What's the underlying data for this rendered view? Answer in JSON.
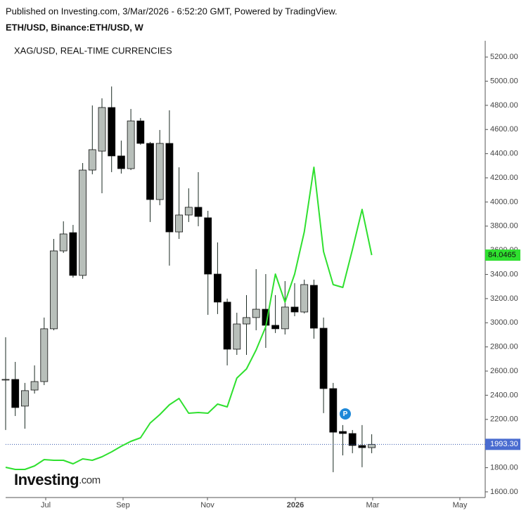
{
  "header": {
    "published": "Published on Investing.com, 3/Mar/2026 - 6:52:20 GMT, Powered by TradingView.",
    "symbol": "ETH/USD, Binance:ETH/USD, W"
  },
  "chart_data": {
    "type": "candlestick",
    "x": [
      0,
      1,
      2,
      3,
      4,
      5,
      6,
      7,
      8,
      9,
      10,
      11,
      12,
      13,
      14,
      15,
      16,
      17,
      18,
      19,
      20,
      21,
      22,
      23,
      24,
      25,
      26,
      27,
      28,
      29,
      30,
      31,
      32,
      33,
      34,
      35,
      36,
      37,
      38
    ],
    "open": [
      2531,
      2531,
      2310,
      2443,
      2513,
      2950,
      3595,
      3746,
      3392,
      4264,
      4421,
      4782,
      4381,
      4276,
      4671,
      4485,
      4020,
      4485,
      3752,
      3892,
      3956,
      3869,
      3403,
      3171,
      2781,
      2990,
      3043,
      3112,
      2979,
      2950,
      3130,
      3089,
      3310,
      2955,
      2455,
      2100,
      2083,
      1984,
      1966
    ],
    "high": [
      2880,
      2676,
      2502,
      2647,
      3043,
      3694,
      3840,
      3810,
      4322,
      4799,
      4858,
      4956,
      4508,
      4770,
      4695,
      4497,
      4596,
      4759,
      4287,
      4113,
      4247,
      3927,
      3665,
      3200,
      3083,
      3229,
      3444,
      3403,
      3229,
      3345,
      3328,
      3357,
      3357,
      3043,
      2502,
      2153,
      2112,
      2153,
      2077
    ],
    "low": [
      2112,
      2228,
      2123,
      2414,
      2484,
      2938,
      3578,
      3374,
      3363,
      4229,
      4072,
      4247,
      4235,
      4264,
      4474,
      3834,
      3973,
      3473,
      3694,
      3834,
      3799,
      3066,
      3072,
      2647,
      2734,
      2734,
      2938,
      2792,
      2915,
      2903,
      3054,
      3077,
      2868,
      2252,
      1763,
      1902,
      1920,
      1804,
      1920
    ],
    "close": [
      2531,
      2298,
      2438,
      2513,
      2950,
      3595,
      3735,
      3392,
      4264,
      4433,
      4782,
      4381,
      4276,
      4671,
      4485,
      4020,
      4485,
      3752,
      3892,
      3956,
      3880,
      3403,
      3171,
      2781,
      2990,
      3043,
      3112,
      2979,
      2950,
      3130,
      3089,
      3316,
      2955,
      2455,
      2094,
      2083,
      1984,
      1966,
      1993.3
    ],
    "close_label": "1993.30",
    "up_color": "#b8bfba",
    "down_color": "#000000",
    "series": [
      {
        "name": "XAG/USD, REAL-TIME CURRENCIES",
        "type": "line",
        "color": "#2fe02f",
        "axis": "y2",
        "values": [
          36.49,
          36.02,
          36.02,
          36.81,
          38.22,
          38.07,
          38.07,
          37.28,
          38.38,
          38.07,
          38.85,
          39.96,
          41.22,
          42.32,
          43.11,
          46.41,
          48.3,
          50.51,
          51.92,
          48.62,
          48.77,
          48.62,
          50.66,
          50.03,
          56.49,
          58.54,
          62.79,
          67.99,
          79.8,
          73.5,
          79.8,
          89.25,
          103.74,
          84.84,
          77.44,
          76.81,
          85.31,
          94.29,
          84.0465
        ],
        "last_value_label": "84.0465"
      }
    ],
    "ylim": [
      1553,
      5323
    ],
    "yticks": [
      {
        "value": 1600,
        "label": "1600.00"
      },
      {
        "value": 1800,
        "label": "1800.00"
      },
      {
        "value": 2000,
        "label": "2000.00"
      },
      {
        "value": 2200,
        "label": "2200.00"
      },
      {
        "value": 2400,
        "label": "2400.00"
      },
      {
        "value": 2600,
        "label": "2600.00"
      },
      {
        "value": 2800,
        "label": "2800.00"
      },
      {
        "value": 3000,
        "label": "3000.00"
      },
      {
        "value": 3200,
        "label": "3200.00"
      },
      {
        "value": 3400,
        "label": "3400.00"
      },
      {
        "value": 3600,
        "label": "3600.00"
      },
      {
        "value": 3800,
        "label": "3800.00"
      },
      {
        "value": 4000,
        "label": "4000.00"
      },
      {
        "value": 4200,
        "label": "4200.00"
      },
      {
        "value": 4400,
        "label": "4400.00"
      },
      {
        "value": 4600,
        "label": "4600.00"
      },
      {
        "value": 4800,
        "label": "4800.00"
      },
      {
        "value": 5000,
        "label": "5000.00"
      },
      {
        "value": 5200,
        "label": "5200.00"
      }
    ],
    "y2lim": [
      29.72,
      131.77
    ],
    "xlim": [
      0,
      49.78
    ],
    "xticks": [
      {
        "value": 4.16,
        "label": "Jul"
      },
      {
        "value": 12.19,
        "label": "Sep"
      },
      {
        "value": 20.95,
        "label": "Nov"
      },
      {
        "value": 30.07,
        "label": "2026"
      },
      {
        "value": 38.1,
        "label": "Mar"
      },
      {
        "value": 47.15,
        "label": "May"
      }
    ],
    "marker": "P",
    "watermark": {
      "main": "Investing",
      "suffix": ".com"
    }
  }
}
